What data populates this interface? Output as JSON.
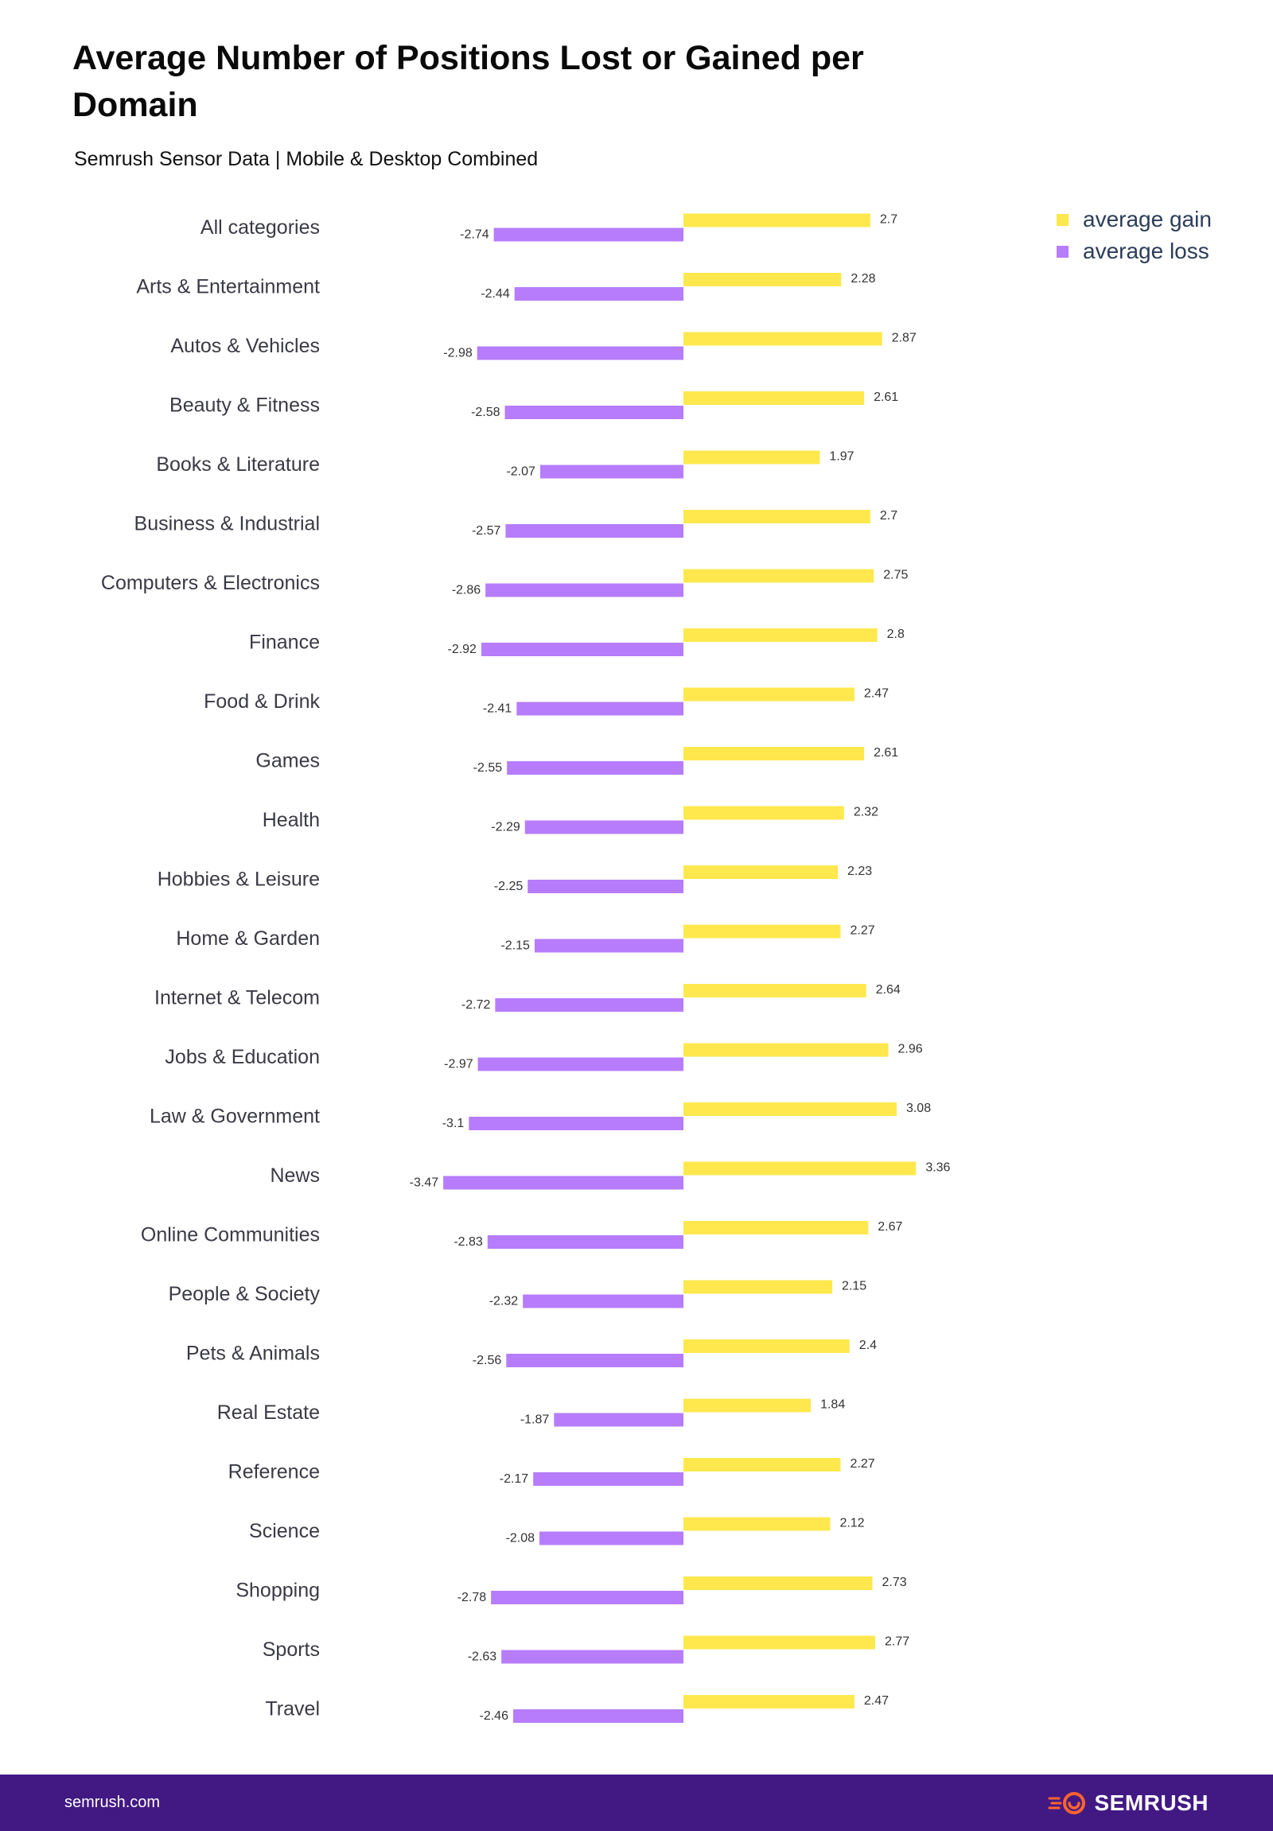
{
  "chart_data": {
    "type": "bar",
    "orientation": "horizontal",
    "title": "Average Number of Positions Lost or Gained per Domain",
    "subtitle": "Semrush Sensor Data | Mobile & Desktop Combined",
    "xlabel": "",
    "ylabel": "",
    "xlim": [
      -3.5,
      3.5
    ],
    "grid": false,
    "legend_position": "top-right",
    "data_labels": true,
    "categories": [
      "All categories",
      "Arts & Entertainment",
      "Autos & Vehicles",
      "Beauty & Fitness",
      "Books & Literature",
      "Business & Industrial",
      "Computers & Electronics",
      "Finance",
      "Food & Drink",
      "Games",
      "Health",
      "Hobbies & Leisure",
      "Home & Garden",
      "Internet & Telecom",
      "Jobs & Education",
      "Law & Government",
      "News",
      "Online Communities",
      "People & Society",
      "Pets & Animals",
      "Real Estate",
      "Reference",
      "Science",
      "Shopping",
      "Sports",
      "Travel"
    ],
    "series": [
      {
        "name": "average gain",
        "color": "#FFE84D",
        "values": [
          2.7,
          2.28,
          2.87,
          2.61,
          1.97,
          2.7,
          2.75,
          2.8,
          2.47,
          2.61,
          2.32,
          2.23,
          2.27,
          2.64,
          2.96,
          3.08,
          3.36,
          2.67,
          2.15,
          2.4,
          1.84,
          2.27,
          2.12,
          2.73,
          2.77,
          2.47
        ]
      },
      {
        "name": "average loss",
        "color": "#B77CFB",
        "values": [
          -2.74,
          -2.44,
          -2.98,
          -2.58,
          -2.07,
          -2.57,
          -2.86,
          -2.92,
          -2.41,
          -2.55,
          -2.29,
          -2.25,
          -2.15,
          -2.72,
          -2.97,
          -3.1,
          -3.47,
          -2.83,
          -2.32,
          -2.56,
          -1.87,
          -2.17,
          -2.08,
          -2.78,
          -2.63,
          -2.46
        ]
      }
    ]
  },
  "footer": {
    "site": "semrush.com",
    "logo_text": "SEMRUSH",
    "logo_icon": "semrush-flame-icon",
    "background": "#421983",
    "logo_color": "#FF642D"
  }
}
